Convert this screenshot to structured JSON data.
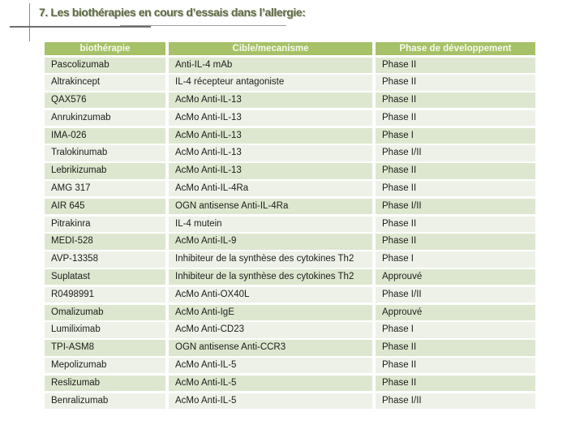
{
  "slide": {
    "title": "7. Les biothérapies en cours d’essais dans l’allergie:"
  },
  "table": {
    "headers": {
      "biotherapie": "biothérapie",
      "cible": "Cible/mecanisme",
      "phase": "Phase de développement"
    },
    "rows": [
      {
        "biotherapie": "Pascolizumab",
        "cible": "Anti-IL-4 mAb",
        "phase": "Phase II"
      },
      {
        "biotherapie": "Altrakincept",
        "cible": "IL-4 récepteur antagoniste",
        "phase": "Phase II"
      },
      {
        "biotherapie": "QAX576",
        "cible": "AcMo Anti-IL-13",
        "phase": "Phase II"
      },
      {
        "biotherapie": "Anrukinzumab",
        "cible": "AcMo Anti-IL-13",
        "phase": "Phase II"
      },
      {
        "biotherapie": "IMA-026",
        "cible": "AcMo Anti-IL-13",
        "phase": "Phase I"
      },
      {
        "biotherapie": "Tralokinumab",
        "cible": "AcMo Anti-IL-13",
        "phase": "Phase I/II"
      },
      {
        "biotherapie": "Lebrikizumab",
        "cible": "AcMo Anti-IL-13",
        "phase": "Phase II"
      },
      {
        "biotherapie": "AMG 317",
        "cible": "AcMo Anti-IL-4Ra",
        "phase": "Phase II"
      },
      {
        "biotherapie": "AIR 645",
        "cible": "OGN antisense Anti-IL-4Ra",
        "phase": "Phase I/II"
      },
      {
        "biotherapie": "Pitrakinra",
        "cible": "IL-4 mutein",
        "phase": "Phase II"
      },
      {
        "biotherapie": "MEDI-528",
        "cible": "AcMo Anti-IL-9",
        "phase": "Phase II"
      },
      {
        "biotherapie": "AVP-13358",
        "cible": "Inhibiteur de la synthèse des cytokines Th2",
        "phase": "Phase I"
      },
      {
        "biotherapie": "Suplatast",
        "cible": "Inhibiteur de la synthèse des cytokines Th2",
        "phase": "Approuvé"
      },
      {
        "biotherapie": "R0498991",
        "cible": "AcMo Anti-OX40L",
        "phase": "Phase I/II"
      },
      {
        "biotherapie": "Omalizumab",
        "cible": "AcMo Anti-IgE",
        "phase": "Approuvé"
      },
      {
        "biotherapie": "Lumiliximab",
        "cible": "AcMo Anti-CD23",
        "phase": "Phase I"
      },
      {
        "biotherapie": "TPI-ASM8",
        "cible": "OGN antisense Anti-CCR3",
        "phase": "Phase II"
      },
      {
        "biotherapie": "Mepolizumab",
        "cible": "AcMo Anti-IL-5",
        "phase": "Phase II"
      },
      {
        "biotherapie": "Reslizumab",
        "cible": "AcMo Anti-IL-5",
        "phase": "Phase II"
      },
      {
        "biotherapie": "Benralizumab",
        "cible": "AcMo Anti-IL-5",
        "phase": "Phase I/II"
      }
    ]
  },
  "colors": {
    "header_bg": "#a6c167",
    "header_text": "#f7faee",
    "row_odd_bg": "#dde7cf",
    "row_even_bg": "#eef1e8",
    "title_color": "#5f6b45",
    "line_color": "#8a8a8a"
  }
}
